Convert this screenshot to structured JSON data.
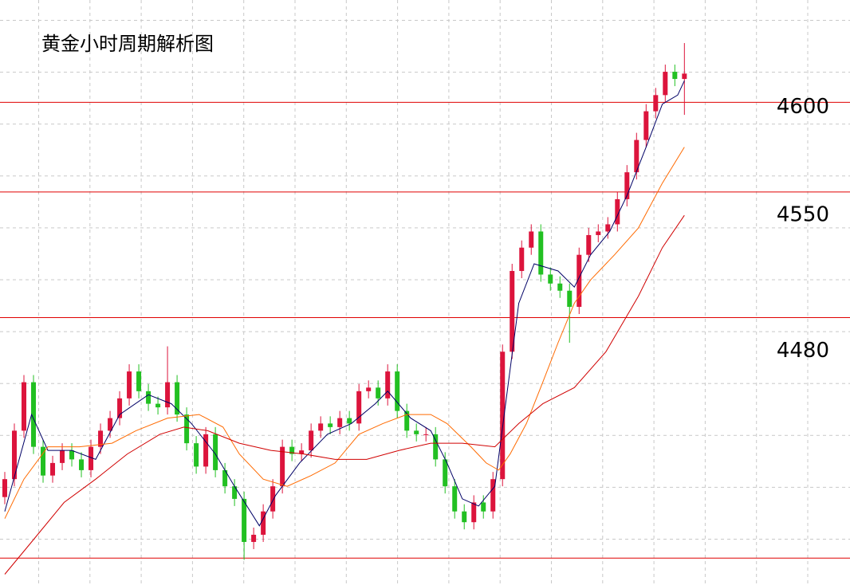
{
  "chart_data": {
    "type": "candlestick",
    "title": "黄金小时周期解析图",
    "ylim": [
      4331,
      4657
    ],
    "xlim": [
      -0.5,
      88.3
    ],
    "up_color": "#dc143c",
    "down_color": "#22c022",
    "level_color": "#e00000",
    "levels": [
      4600,
      4550,
      4480
    ],
    "base_level": 4346,
    "grid": true,
    "open": [
      4380,
      4390,
      4417,
      4444,
      4408,
      4392,
      4399,
      4406,
      4401,
      4395,
      4408,
      4417,
      4424,
      4435,
      4450,
      4439,
      4432,
      4430,
      4444,
      4426,
      4410,
      4397,
      4415,
      4395,
      4386,
      4379,
      4355,
      4359,
      4372,
      4386,
      4408,
      4404,
      4406,
      4417,
      4421,
      4419,
      4424,
      4421,
      4439,
      4441,
      4435,
      4450,
      4428,
      4417,
      4415,
      4415,
      4401,
      4386,
      4372,
      4366,
      4377,
      4372,
      4390,
      4461,
      4506,
      4519,
      4528,
      4504,
      4499,
      4495,
      4486,
      4515,
      4526,
      4528,
      4532,
      4546,
      4561,
      4579,
      4595,
      4604,
      4617,
      4613
    ],
    "high": [
      4394,
      4421,
      4448,
      4448,
      4412,
      4403,
      4410,
      4410,
      4405,
      4412,
      4421,
      4428,
      4439,
      4454,
      4454,
      4443,
      4436,
      4464,
      4448,
      4430,
      4414,
      4419,
      4419,
      4399,
      4390,
      4383,
      4363,
      4376,
      4390,
      4412,
      4412,
      4410,
      4421,
      4425,
      4425,
      4428,
      4428,
      4443,
      4445,
      4445,
      4454,
      4454,
      4432,
      4421,
      4419,
      4419,
      4405,
      4390,
      4376,
      4381,
      4381,
      4394,
      4465,
      4510,
      4523,
      4532,
      4532,
      4508,
      4503,
      4499,
      4519,
      4530,
      4532,
      4536,
      4550,
      4565,
      4583,
      4599,
      4608,
      4621,
      4621,
      4633
    ],
    "low": [
      4376,
      4386,
      4413,
      4404,
      4388,
      4388,
      4395,
      4397,
      4391,
      4391,
      4404,
      4413,
      4420,
      4431,
      4435,
      4428,
      4426,
      4426,
      4422,
      4406,
      4393,
      4393,
      4391,
      4382,
      4375,
      4345,
      4351,
      4355,
      4368,
      4382,
      4400,
      4400,
      4402,
      4413,
      4415,
      4415,
      4417,
      4417,
      4435,
      4431,
      4431,
      4424,
      4413,
      4411,
      4411,
      4397,
      4382,
      4368,
      4362,
      4362,
      4368,
      4368,
      4386,
      4457,
      4502,
      4515,
      4500,
      4495,
      4491,
      4466,
      4482,
      4511,
      4522,
      4524,
      4528,
      4542,
      4557,
      4575,
      4591,
      4600,
      4609,
      4593
    ],
    "close": [
      4390,
      4417,
      4444,
      4408,
      4392,
      4399,
      4406,
      4401,
      4395,
      4408,
      4417,
      4424,
      4435,
      4450,
      4439,
      4432,
      4430,
      4444,
      4426,
      4410,
      4397,
      4415,
      4395,
      4386,
      4379,
      4355,
      4359,
      4372,
      4386,
      4408,
      4404,
      4406,
      4417,
      4421,
      4419,
      4424,
      4421,
      4439,
      4441,
      4435,
      4450,
      4428,
      4417,
      4415,
      4415,
      4401,
      4386,
      4372,
      4366,
      4377,
      4372,
      4390,
      4461,
      4506,
      4519,
      4528,
      4504,
      4499,
      4495,
      4486,
      4515,
      4526,
      4528,
      4532,
      4546,
      4561,
      4579,
      4595,
      4604,
      4617,
      4613,
      4616
    ],
    "series": [
      {
        "color": "#000066",
        "x": [
          0,
          2.8,
          4.5,
          7,
          9.5,
          12,
          15,
          17.4,
          19.5,
          22,
          24,
          26.6,
          28.3,
          30.8,
          33.7,
          36.2,
          38.7,
          40,
          42.4,
          44.5,
          46.2,
          47.8,
          49.5,
          51.2,
          52.4,
          53.7,
          55.3,
          57.8,
          59.5,
          61.2,
          63.2,
          65,
          67,
          68.7,
          70.3,
          71
        ],
        "values": [
          4372,
          4426,
          4406,
          4406,
          4401,
          4426,
          4437,
          4432,
          4421,
          4404,
          4386,
          4364,
          4381,
          4399,
          4415,
          4421,
          4432,
          4439,
          4424,
          4417,
          4399,
          4379,
          4375,
          4386,
          4435,
          4488,
          4510,
          4506,
          4497,
          4515,
          4528,
          4548,
          4575,
          4599,
          4604,
          4612
        ]
      },
      {
        "color": "#ff6a00",
        "x": [
          0,
          2,
          4.5,
          7.8,
          11.2,
          13.7,
          17,
          20.3,
          22.8,
          24.5,
          27,
          29.5,
          32,
          34.5,
          37,
          39.5,
          42,
          44.5,
          46.2,
          48.7,
          50.3,
          51.6,
          52.8,
          54.5,
          56.2,
          57.8,
          59.5,
          61.2,
          63.7,
          66.2,
          68.7,
          71
        ],
        "values": [
          4368,
          4390,
          4408,
          4408,
          4410,
          4417,
          4424,
          4426,
          4419,
          4404,
          4390,
          4386,
          4392,
          4399,
          4415,
          4421,
          4426,
          4426,
          4421,
          4408,
          4399,
          4395,
          4404,
          4421,
          4444,
          4466,
          4488,
          4501,
          4515,
          4530,
          4555,
          4575
        ]
      },
      {
        "color": "#d00000",
        "x": [
          0,
          2.8,
          6.2,
          9.5,
          12.8,
          16.2,
          18.7,
          21.2,
          24.5,
          27.8,
          31.2,
          34.5,
          37.8,
          41.2,
          44.5,
          47.8,
          51.2,
          53.7,
          56.2,
          59.5,
          62.8,
          66.2,
          68.7,
          71
        ],
        "values": [
          4337,
          4355,
          4377,
          4390,
          4404,
          4415,
          4419,
          4417,
          4410,
          4406,
          4404,
          4401,
          4401,
          4406,
          4410,
          4410,
          4408,
          4421,
          4432,
          4441,
          4461,
          4492,
          4519,
          4537
        ]
      }
    ]
  }
}
